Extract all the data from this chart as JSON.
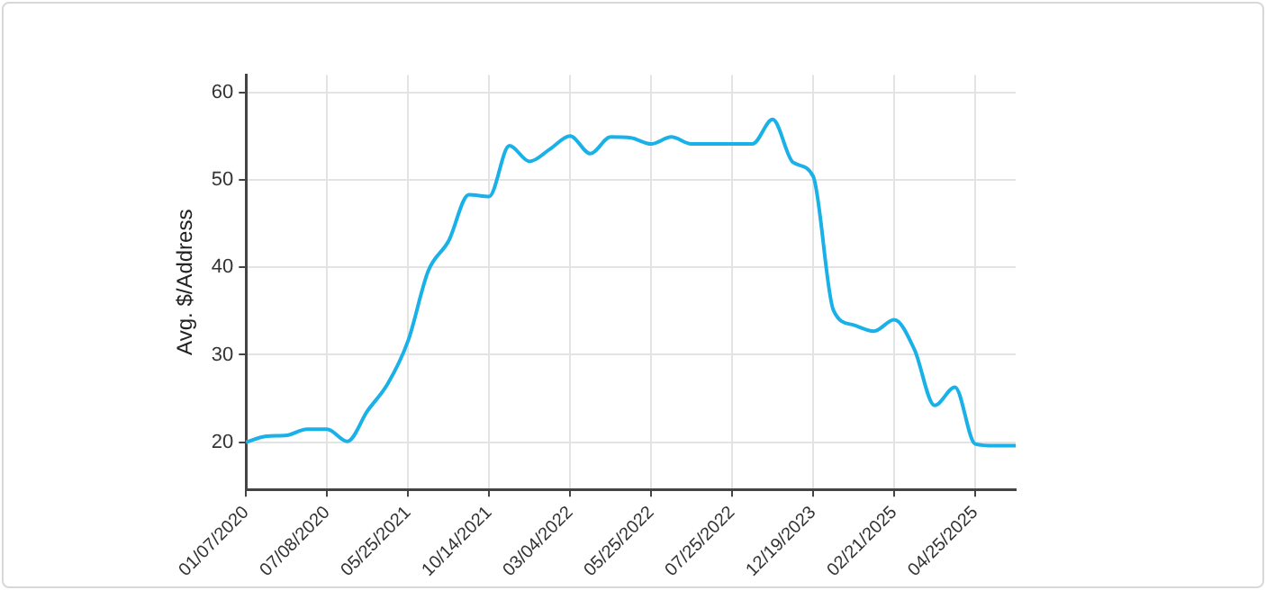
{
  "chart_data": {
    "type": "line",
    "ylabel": "Avg. $/Address",
    "categories": [
      "01/07/2020",
      null,
      null,
      null,
      "07/08/2020",
      null,
      null,
      null,
      "05/25/2021",
      null,
      null,
      null,
      "10/14/2021",
      null,
      null,
      null,
      "03/04/2022",
      null,
      null,
      null,
      "05/25/2022",
      null,
      null,
      null,
      "07/25/2022",
      null,
      null,
      null,
      "12/19/2023",
      null,
      null,
      null,
      "02/21/2025",
      null,
      null,
      null,
      "04/25/2025",
      null,
      null
    ],
    "series": [
      {
        "color": "#1ab0e8",
        "values": [
          20,
          20.7,
          20.8,
          21.5,
          21.5,
          20.1,
          23.6,
          26.7,
          31.6,
          39.6,
          43,
          48.3,
          48.1,
          53.9,
          52.1,
          53.5,
          55,
          53,
          54.9,
          54.8,
          54.1,
          54.9,
          54.1,
          54.1,
          54.1,
          54.1,
          56.9,
          52,
          50.4,
          35.1,
          33.4,
          32.7,
          34,
          30.6,
          24.2,
          26.3,
          19.8,
          19.6,
          19.6
        ]
      }
    ],
    "ylim": [
      14.6,
      62
    ],
    "yticks": [
      20,
      30,
      40,
      50,
      60
    ],
    "grid": true,
    "legend": false,
    "marker": "none",
    "line_style": "solid"
  }
}
